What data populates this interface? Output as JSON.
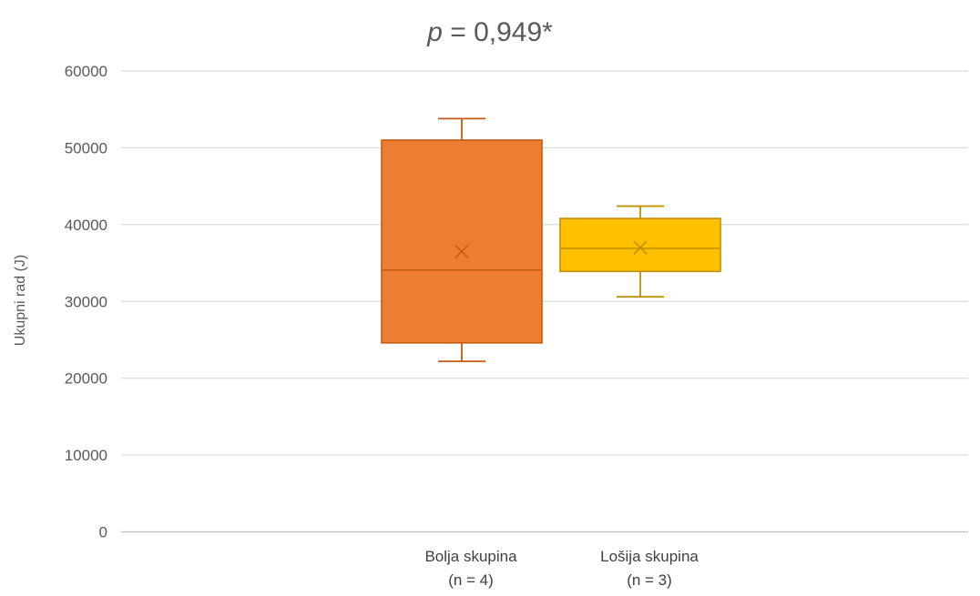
{
  "chart_data": {
    "type": "boxplot",
    "title": {
      "p_symbol": "p",
      "rest": " = 0,949*"
    },
    "ylabel": "Ukupni rad (J)",
    "xlabel": "",
    "ylim": [
      0,
      60000
    ],
    "yticks": [
      0,
      10000,
      20000,
      30000,
      40000,
      50000,
      60000
    ],
    "grid": true,
    "legend": "none",
    "series": [
      {
        "category_line1": "Bolja skupina",
        "category_line2": "(n = 4)",
        "color": "#ED7D31",
        "border": "#C55A11",
        "min": 22200,
        "q1": 24600,
        "median": 34100,
        "mean": 36500,
        "q3": 51000,
        "max": 53800
      },
      {
        "category_line1": "Lošija skupina",
        "category_line2": "(n = 3)",
        "color": "#FFC000",
        "border": "#BF9000",
        "min": 30600,
        "q1": 33900,
        "median": 36900,
        "mean": 37000,
        "q3": 40800,
        "max": 42400
      }
    ]
  }
}
